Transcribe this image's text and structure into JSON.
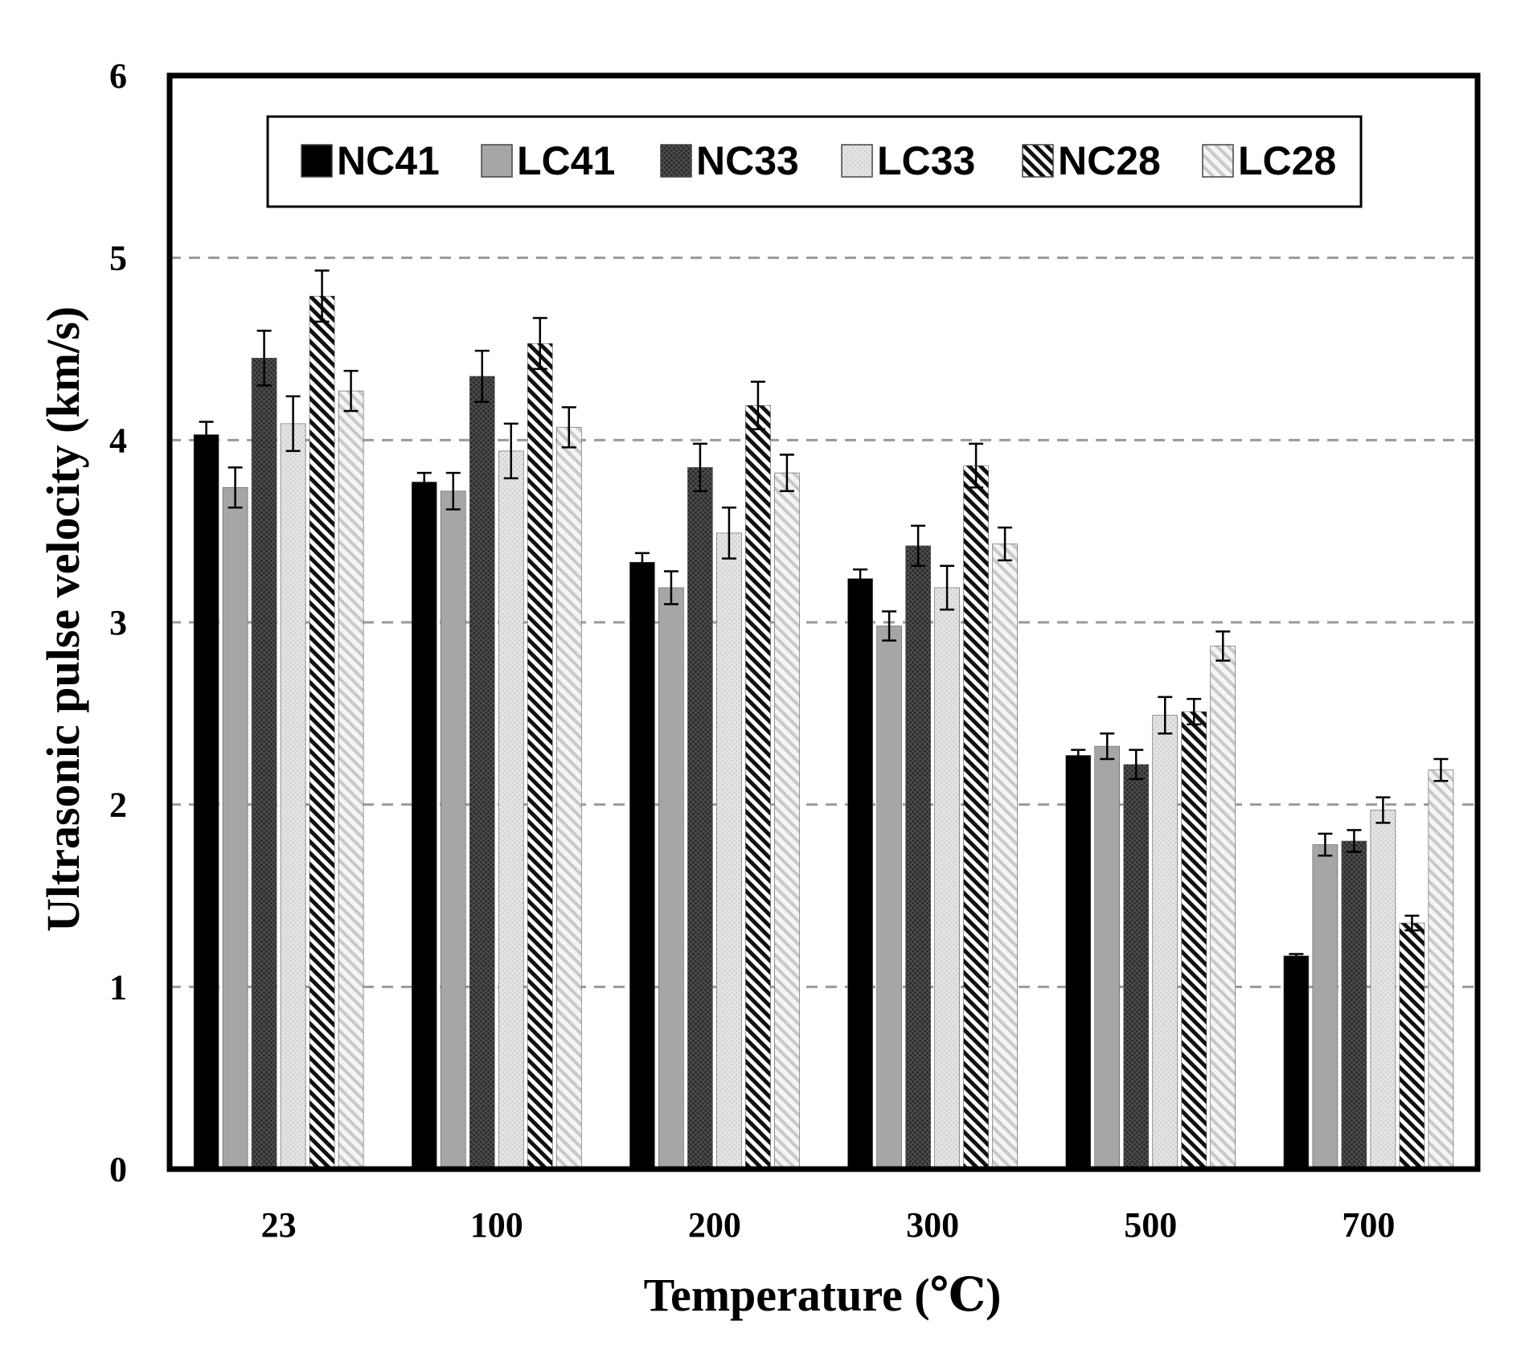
{
  "chart_data": {
    "type": "bar",
    "title": "",
    "xlabel": "Temperature (℃)",
    "ylabel": "Ultrasonic pulse velocity (km/s)",
    "ylim": [
      0,
      6
    ],
    "yticks": [
      "0",
      "1",
      "2",
      "3",
      "4",
      "5",
      "6"
    ],
    "grid": true,
    "legend_position": "top",
    "categories": [
      "23",
      "100",
      "200",
      "300",
      "500",
      "700"
    ],
    "series": [
      {
        "name": "NC41",
        "pattern": "solid-black",
        "color": "#000000",
        "values": [
          4.03,
          3.77,
          3.33,
          3.24,
          2.27,
          1.17
        ],
        "errors": [
          0.07,
          0.05,
          0.05,
          0.05,
          0.03,
          0.01
        ]
      },
      {
        "name": "LC41",
        "pattern": "solid-gray",
        "color": "#a6a6a6",
        "values": [
          3.74,
          3.72,
          3.19,
          2.98,
          2.32,
          1.78
        ],
        "errors": [
          0.11,
          0.1,
          0.09,
          0.08,
          0.07,
          0.06
        ]
      },
      {
        "name": "NC33",
        "pattern": "dark-dotted",
        "color": "#3a3a3a",
        "values": [
          4.45,
          4.35,
          3.85,
          3.42,
          2.22,
          1.8
        ],
        "errors": [
          0.15,
          0.14,
          0.13,
          0.11,
          0.08,
          0.06
        ]
      },
      {
        "name": "LC33",
        "pattern": "light-dotted",
        "color": "#d9d9d9",
        "values": [
          4.09,
          3.94,
          3.49,
          3.19,
          2.49,
          1.97
        ],
        "errors": [
          0.15,
          0.15,
          0.14,
          0.12,
          0.1,
          0.07
        ]
      },
      {
        "name": "NC28",
        "pattern": "dark-hatch",
        "color": "#2b2b2b",
        "values": [
          4.79,
          4.53,
          4.19,
          3.86,
          2.51,
          1.35
        ],
        "errors": [
          0.14,
          0.14,
          0.13,
          0.12,
          0.07,
          0.04
        ]
      },
      {
        "name": "LC28",
        "pattern": "light-hatch",
        "color": "#d0d0d0",
        "values": [
          4.27,
          4.07,
          3.82,
          3.43,
          2.87,
          2.19
        ],
        "errors": [
          0.11,
          0.11,
          0.1,
          0.09,
          0.08,
          0.06
        ]
      }
    ]
  }
}
